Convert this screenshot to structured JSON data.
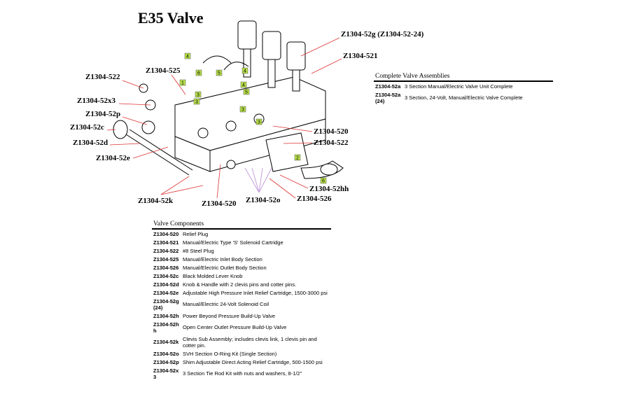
{
  "title": "E35 Valve",
  "part_labels": [
    "Z1304-52g (Z1304-52-24)",
    "Z1304-521",
    "Z1304-522",
    "Z1304-525",
    "Z1304-52x3",
    "Z1304-52p",
    "Z1304-52c",
    "Z1304-52d",
    "Z1304-52e",
    "Z1304-520",
    "Z1304-522",
    "Z1304-52hh",
    "Z1304-526",
    "Z1304-52k",
    "Z1304-520",
    "Z1304-52o"
  ],
  "callouts": [
    "4",
    "6",
    "5",
    "4",
    "1",
    "3",
    "4",
    "3",
    "5",
    "3",
    "3",
    "2",
    "6"
  ],
  "complete_assemblies": {
    "title": "Complete Valve Assemblies",
    "rows": [
      [
        "Z1304-52a",
        "3 Section Manual/Electric Valve Unit Complete"
      ],
      [
        "Z1304-52a(24)",
        "3 Section, 24-Volt, Manual/Electric Valve Complete"
      ]
    ]
  },
  "valve_components": {
    "title": "Valve Components",
    "rows": [
      [
        "Z1304-520",
        "Relief Plug"
      ],
      [
        "Z1304-521",
        "Manual/Electric Type 'S' Solenoid Cartridge"
      ],
      [
        "Z1304-522",
        "#8 Steel Plug"
      ],
      [
        "Z1304-525",
        "Manual/Electric Inlet Body Section"
      ],
      [
        "Z1304-526",
        "Manual/Electric Outlet Body Section"
      ],
      [
        "Z1304-52c",
        "Black Molded Lever Knob"
      ],
      [
        "Z1304-52d",
        "Knob & Handle with 2 clevis pins and cotter pins."
      ],
      [
        "Z1304-52e",
        "Adjustable High Pressure Inlet Relief Cartridge, 1500-3000 psi"
      ],
      [
        "Z1304-52g(24)",
        "Manual/Electric 24-Volt Solenoid Coil"
      ],
      [
        "Z1304-52h",
        "Power Beyond Pressure Build-Up Valve"
      ],
      [
        "Z1304-52hh",
        "Open Center Outlet Pressure Build-Up Valve"
      ],
      [
        "Z1304-52k",
        "Clevis Sub Assembly; includes clevis link, 1 clevis pin and cotter pin."
      ],
      [
        "Z1304-52o",
        "SVH Section O-Ring Kit (Single Section)"
      ],
      [
        "Z1304-52p",
        "Shim Adjustable Direct Acting Relief Cartridge, 500-1500 psi"
      ],
      [
        "Z1304-52x3",
        "3 Section Tie Rod Kit with nuts and washers, 8-1/2\""
      ]
    ]
  }
}
